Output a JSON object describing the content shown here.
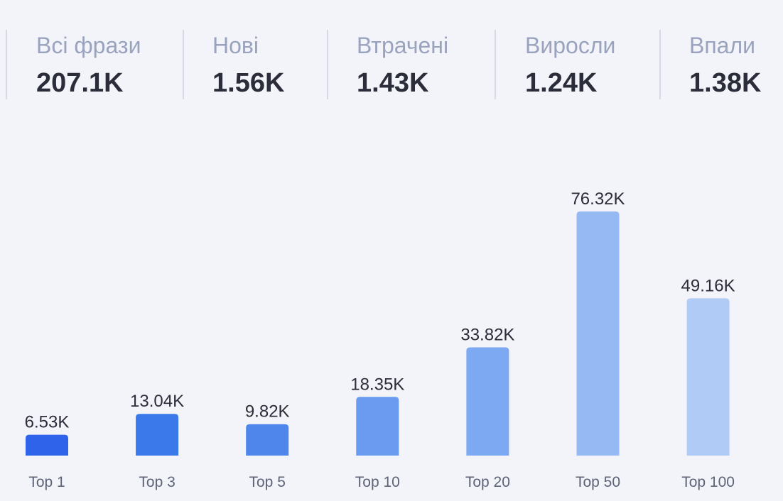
{
  "stats": [
    {
      "label": "Всі фрази",
      "value": "207.1K"
    },
    {
      "label": "Нові",
      "value": "1.56K"
    },
    {
      "label": "Втрачені",
      "value": "1.43K"
    },
    {
      "label": "Виросли",
      "value": "1.24K"
    },
    {
      "label": "Впали",
      "value": "1.38K"
    }
  ],
  "chart_data": {
    "type": "bar",
    "categories": [
      "Top 1",
      "Top 3",
      "Top 5",
      "Top 10",
      "Top 20",
      "Top 50",
      "Top 100"
    ],
    "values": [
      6530,
      13040,
      9820,
      18350,
      33820,
      76320,
      49160
    ],
    "value_labels": [
      "6.53K",
      "13.04K",
      "9.82K",
      "18.35K",
      "33.82K",
      "76.32K",
      "49.16K"
    ],
    "colors": [
      "#2f63ea",
      "#3b78ea",
      "#4e86ec",
      "#6a9bf0",
      "#7da8f2",
      "#97b9f3",
      "#b0cbf6"
    ],
    "grid": false,
    "legend": "none"
  }
}
